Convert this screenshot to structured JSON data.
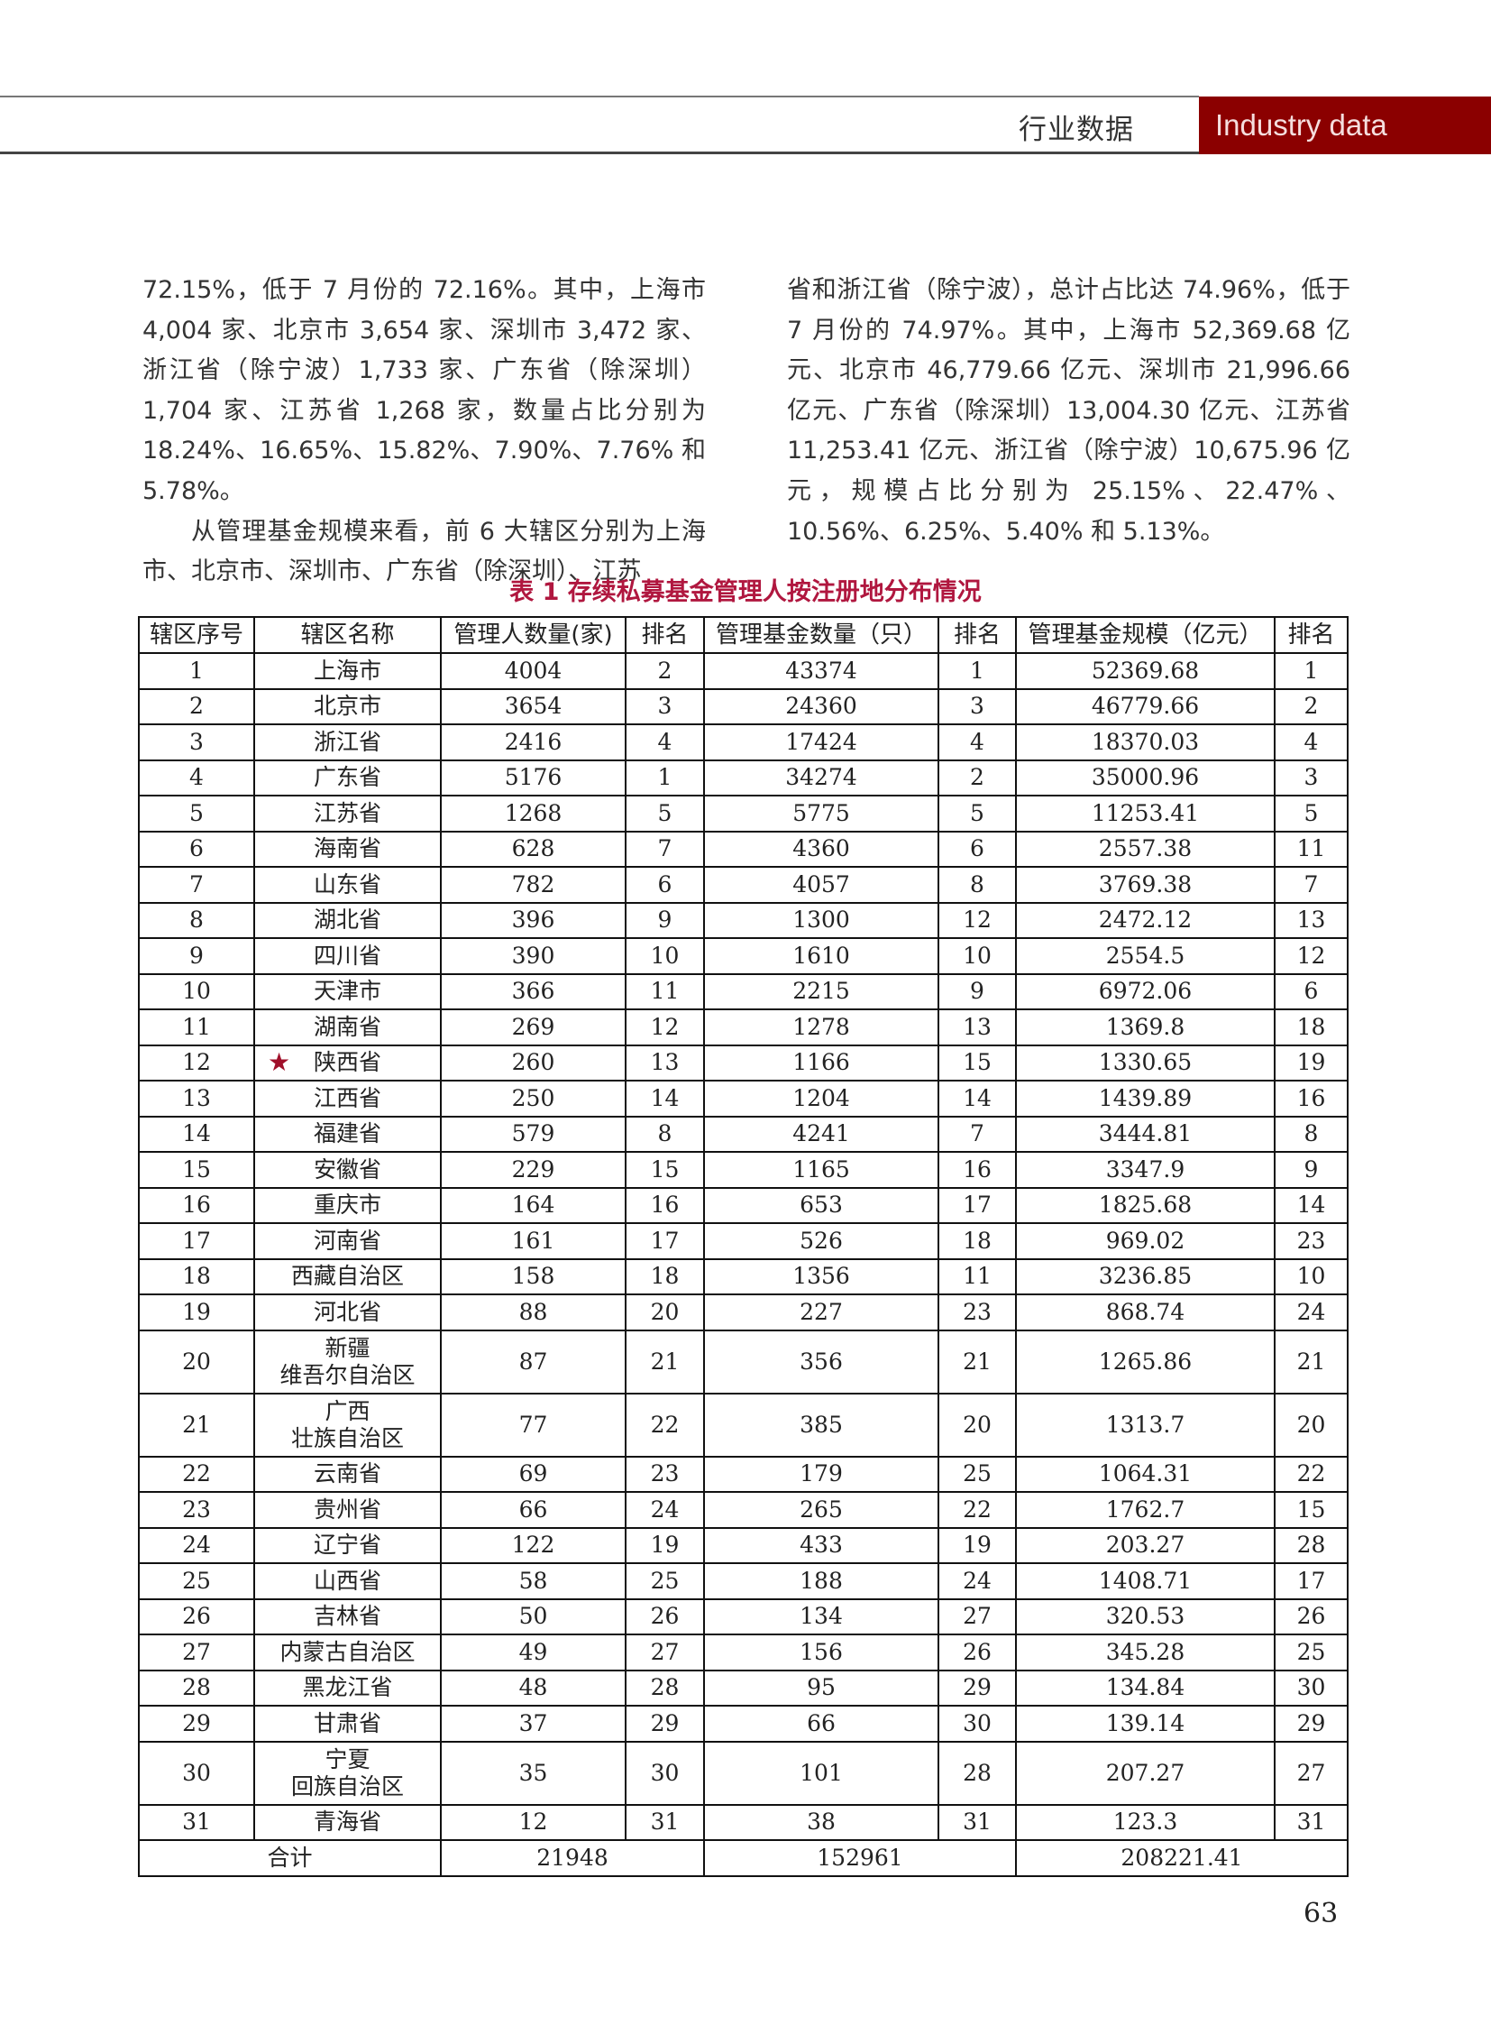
{
  "header": {
    "section_cn": "行业数据",
    "section_en": "Industry data",
    "accent_color": "#8b0000"
  },
  "body_text": {
    "left": [
      "72.15%，低于 7 月份的 72.16%。其中，上海市 4,004 家、北京市 3,654 家、深圳市 3,472 家、浙江省（除宁波）1,733 家、广东省（除深圳）1,704 家、江苏省 1,268 家，数量占比分别为 18.24%、16.65%、15.82%、7.90%、7.76% 和 5.78%。",
      "从管理基金规模来看，前 6 大辖区分别为上海市、北京市、深圳市、广东省（除深圳）、江苏"
    ],
    "right": [
      "省和浙江省（除宁波），总计占比达 74.96%，低于 7 月份的 74.97%。其中，上海市 52,369.68 亿元、北京市 46,779.66 亿元、深圳市 21,996.66 亿元、广东省（除深圳）13,004.30 亿元、江苏省 11,253.41 亿元、浙江省（除宁波）10,675.96 亿元，规模占比分别为 25.15%、22.47%、10.56%、6.25%、5.40% 和 5.13%。"
    ]
  },
  "table": {
    "caption": "表 1 存续私募基金管理人按注册地分布情况",
    "headers": [
      "辖区序号",
      "辖区名称",
      "管理人数量(家)",
      "排名",
      "管理基金数量（只）",
      "排名",
      "管理基金规模（亿元）",
      "排名"
    ],
    "rows": [
      [
        "1",
        "上海市",
        "4004",
        "2",
        "43374",
        "1",
        "52369.68",
        "1"
      ],
      [
        "2",
        "北京市",
        "3654",
        "3",
        "24360",
        "3",
        "46779.66",
        "2"
      ],
      [
        "3",
        "浙江省",
        "2416",
        "4",
        "17424",
        "4",
        "18370.03",
        "4"
      ],
      [
        "4",
        "广东省",
        "5176",
        "1",
        "34274",
        "2",
        "35000.96",
        "3"
      ],
      [
        "5",
        "江苏省",
        "1268",
        "5",
        "5775",
        "5",
        "11253.41",
        "5"
      ],
      [
        "6",
        "海南省",
        "628",
        "7",
        "4360",
        "6",
        "2557.38",
        "11"
      ],
      [
        "7",
        "山东省",
        "782",
        "6",
        "4057",
        "8",
        "3769.38",
        "7"
      ],
      [
        "8",
        "湖北省",
        "396",
        "9",
        "1300",
        "12",
        "2472.12",
        "13"
      ],
      [
        "9",
        "四川省",
        "390",
        "10",
        "1610",
        "10",
        "2554.5",
        "12"
      ],
      [
        "10",
        "天津市",
        "366",
        "11",
        "2215",
        "9",
        "6972.06",
        "6"
      ],
      [
        "11",
        "湖南省",
        "269",
        "12",
        "1278",
        "13",
        "1369.8",
        "18"
      ],
      [
        "12",
        "陕西省",
        "260",
        "13",
        "1166",
        "15",
        "1330.65",
        "19"
      ],
      [
        "13",
        "江西省",
        "250",
        "14",
        "1204",
        "14",
        "1439.89",
        "16"
      ],
      [
        "14",
        "福建省",
        "579",
        "8",
        "4241",
        "7",
        "3444.81",
        "8"
      ],
      [
        "15",
        "安徽省",
        "229",
        "15",
        "1165",
        "16",
        "3347.9",
        "9"
      ],
      [
        "16",
        "重庆市",
        "164",
        "16",
        "653",
        "17",
        "1825.68",
        "14"
      ],
      [
        "17",
        "河南省",
        "161",
        "17",
        "526",
        "18",
        "969.02",
        "23"
      ],
      [
        "18",
        "西藏自治区",
        "158",
        "18",
        "1356",
        "11",
        "3236.85",
        "10"
      ],
      [
        "19",
        "河北省",
        "88",
        "20",
        "227",
        "23",
        "868.74",
        "24"
      ],
      [
        "20",
        "新疆\n维吾尔自治区",
        "87",
        "21",
        "356",
        "21",
        "1265.86",
        "21"
      ],
      [
        "21",
        "广西\n壮族自治区",
        "77",
        "22",
        "385",
        "20",
        "1313.7",
        "20"
      ],
      [
        "22",
        "云南省",
        "69",
        "23",
        "179",
        "25",
        "1064.31",
        "22"
      ],
      [
        "23",
        "贵州省",
        "66",
        "24",
        "265",
        "22",
        "1762.7",
        "15"
      ],
      [
        "24",
        "辽宁省",
        "122",
        "19",
        "433",
        "19",
        "203.27",
        "28"
      ],
      [
        "25",
        "山西省",
        "58",
        "25",
        "188",
        "24",
        "1408.71",
        "17"
      ],
      [
        "26",
        "吉林省",
        "50",
        "26",
        "134",
        "27",
        "320.53",
        "26"
      ],
      [
        "27",
        "内蒙古自治区",
        "49",
        "27",
        "156",
        "26",
        "345.28",
        "25"
      ],
      [
        "28",
        "黑龙江省",
        "48",
        "28",
        "95",
        "29",
        "134.84",
        "30"
      ],
      [
        "29",
        "甘肃省",
        "37",
        "29",
        "66",
        "30",
        "139.14",
        "29"
      ],
      [
        "30",
        "宁夏\n回族自治区",
        "35",
        "30",
        "101",
        "28",
        "207.27",
        "27"
      ],
      [
        "31",
        "青海省",
        "12",
        "31",
        "38",
        "31",
        "123.3",
        "31"
      ]
    ],
    "highlighted_row": "12",
    "highlight_icon": "star-icon",
    "highlight_color": "#a0102a",
    "total": {
      "label": "合计",
      "managers": "21948",
      "funds": "152961",
      "scale": "208221.41"
    }
  },
  "page_number": "63"
}
